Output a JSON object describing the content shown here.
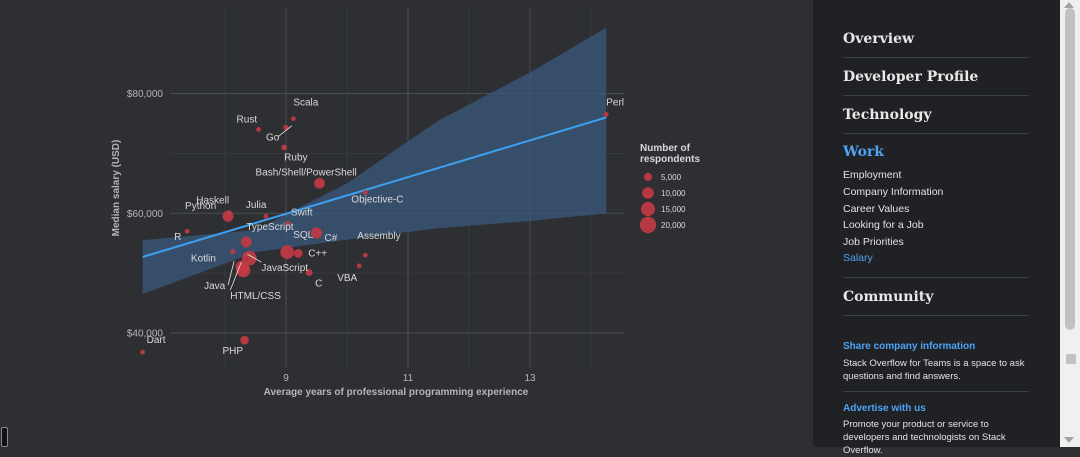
{
  "chart_data": {
    "type": "scatter",
    "xlabel": "Average years of professional programming experience",
    "ylabel": "Median salary (USD)",
    "xlim": [
      6.65,
      14.6
    ],
    "ylim": [
      34000,
      94000
    ],
    "x_ticks": [
      {
        "value": 9,
        "label": "9"
      },
      {
        "value": 11,
        "label": "11"
      },
      {
        "value": 13,
        "label": "13"
      }
    ],
    "y_ticks": [
      {
        "value": 40000,
        "label": "$40,000"
      },
      {
        "value": 60000,
        "label": "$60,000"
      },
      {
        "value": 80000,
        "label": "$80,000"
      }
    ],
    "grid": true,
    "points": [
      {
        "label": "Perl",
        "x": 14.25,
        "y": 76500,
        "n": 1200
      },
      {
        "label": "Scala",
        "x": 9.12,
        "y": 75800,
        "n": 1500
      },
      {
        "label": "Rust",
        "x": 8.55,
        "y": 74000,
        "n": 1100
      },
      {
        "label": "Go",
        "x": 9.0,
        "y": 74300,
        "n": 2200
      },
      {
        "label": "Ruby",
        "x": 8.97,
        "y": 71000,
        "n": 2500
      },
      {
        "label": "Bash/Shell/PowerShell",
        "x": 9.55,
        "y": 65000,
        "n": 8500
      },
      {
        "label": "Objective-C",
        "x": 10.3,
        "y": 63500,
        "n": 1300
      },
      {
        "label": "Haskell",
        "x": 8.07,
        "y": 60100,
        "n": 700
      },
      {
        "label": "Julia",
        "x": 8.67,
        "y": 59500,
        "n": 250
      },
      {
        "label": "Python",
        "x": 8.05,
        "y": 59500,
        "n": 9000
      },
      {
        "label": "Swift",
        "x": 9.03,
        "y": 58300,
        "n": 1800
      },
      {
        "label": "R",
        "x": 7.38,
        "y": 57000,
        "n": 1200
      },
      {
        "label": "C#",
        "x": 9.5,
        "y": 56700,
        "n": 9500
      },
      {
        "label": "TypeScript",
        "x": 8.35,
        "y": 55200,
        "n": 8800
      },
      {
        "label": "SQL",
        "x": 9.02,
        "y": 53500,
        "n": 14000
      },
      {
        "label": "C++",
        "x": 9.2,
        "y": 53300,
        "n": 5800
      },
      {
        "label": "Kotlin",
        "x": 8.13,
        "y": 53600,
        "n": 2000
      },
      {
        "label": "Assembly",
        "x": 10.3,
        "y": 53000,
        "n": 900
      },
      {
        "label": "JavaScript",
        "x": 8.4,
        "y": 52500,
        "n": 16000
      },
      {
        "label": "Java",
        "x": 8.28,
        "y": 51000,
        "n": 13000
      },
      {
        "label": "HTML/CSS",
        "x": 8.3,
        "y": 50500,
        "n": 15000
      },
      {
        "label": "VBA",
        "x": 10.2,
        "y": 51200,
        "n": 1400
      },
      {
        "label": "C",
        "x": 9.38,
        "y": 50100,
        "n": 3500
      },
      {
        "label": "PHP",
        "x": 8.32,
        "y": 38800,
        "n": 5500
      },
      {
        "label": "Dart",
        "x": 6.65,
        "y": 36800,
        "n": 900
      }
    ],
    "trend": {
      "x1": 6.65,
      "y1": 52700,
      "x2": 14.25,
      "y2": 76000
    },
    "band": {
      "upper": [
        [
          6.65,
          55500
        ],
        [
          8.5,
          57200
        ],
        [
          10,
          65000
        ],
        [
          11.5,
          75500
        ],
        [
          13,
          83500
        ],
        [
          14.25,
          91000
        ]
      ],
      "lower": [
        [
          6.65,
          46500
        ],
        [
          8.5,
          53500
        ],
        [
          10,
          55600
        ],
        [
          11.5,
          57500
        ],
        [
          13,
          58700
        ],
        [
          14.25,
          60000
        ]
      ]
    },
    "legend": {
      "title_line1": "Number of",
      "title_line2": "respondents",
      "entries": [
        {
          "label": "5,000",
          "n": 5000
        },
        {
          "label": "10,000",
          "n": 10000
        },
        {
          "label": "15,000",
          "n": 15000
        },
        {
          "label": "20,000",
          "n": 20000
        }
      ],
      "placement": "right"
    },
    "colors": {
      "point": "#c43a44",
      "trend": "#3da0f0",
      "band": "#3a5a7c",
      "grid": "#4a4d52",
      "text": "#d9d9d9",
      "axis_text": "#b5b5b5"
    }
  },
  "sidebar": {
    "nav": [
      {
        "label": "Overview",
        "active": false
      },
      {
        "label": "Developer Profile",
        "active": false
      },
      {
        "label": "Technology",
        "active": false
      },
      {
        "label": "Work",
        "active": true
      },
      {
        "label": "Community",
        "active": false
      }
    ],
    "work_items": [
      "Employment",
      "Company Information",
      "Career Values",
      "Looking for a Job",
      "Job Priorities",
      "Salary"
    ],
    "active_item": "Salary",
    "promo1": {
      "title": "Share company information",
      "text": "Stack Overflow for Teams is a space to ask questions and find answers."
    },
    "promo2": {
      "title": "Advertise with us",
      "text": "Promote your product or service to developers and technologists on Stack Overflow."
    }
  }
}
